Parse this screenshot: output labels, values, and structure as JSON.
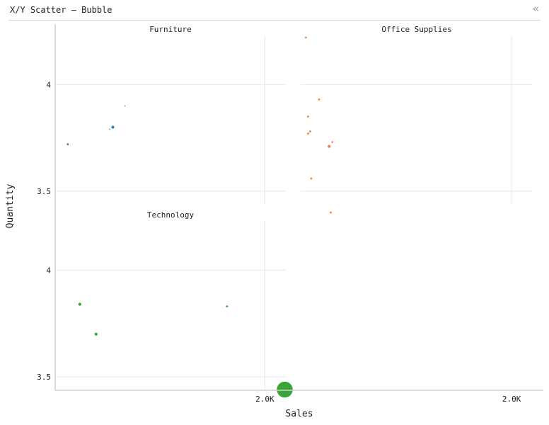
{
  "window": {
    "title": "X/Y Scatter – Bubble",
    "collapse_icon": "double-chevron-left-icon"
  },
  "chart_data": {
    "type": "scatter",
    "subtype": "bubble",
    "xlabel": "Sales",
    "ylabel": "Quantity",
    "x_ticks": [
      "2.0K"
    ],
    "x_tick_values": [
      2000
    ],
    "y_ticks": [
      "4",
      "3.5"
    ],
    "y_tick_values": [
      4,
      3.5
    ],
    "xlim": [
      0,
      2200
    ],
    "ylim": [
      3.44,
      4.23
    ],
    "grid": true,
    "legend": "none",
    "facets": [
      {
        "name": "Furniture",
        "color": "#1f77b4",
        "points": [
          {
            "x": 120,
            "y": 3.72,
            "size": 2
          },
          {
            "x": 520,
            "y": 3.79,
            "size": 1
          },
          {
            "x": 550,
            "y": 3.8,
            "size": 3
          },
          {
            "x": 665,
            "y": 3.9,
            "size": 1
          }
        ]
      },
      {
        "name": "Office Supplies",
        "color": "#e6823a",
        "points": [
          {
            "x": 50,
            "y": 4.22,
            "size": 2
          },
          {
            "x": 175,
            "y": 3.93,
            "size": 2
          },
          {
            "x": 70,
            "y": 3.85,
            "size": 2
          },
          {
            "x": 90,
            "y": 3.78,
            "size": 2
          },
          {
            "x": 70,
            "y": 3.77,
            "size": 2
          },
          {
            "x": 300,
            "y": 3.73,
            "size": 2
          },
          {
            "x": 270,
            "y": 3.71,
            "size": 3
          },
          {
            "x": 100,
            "y": 3.56,
            "size": 2
          },
          {
            "x": 285,
            "y": 3.4,
            "size": 2
          }
        ]
      },
      {
        "name": "Technology",
        "color": "#2ca02c",
        "points": [
          {
            "x": 235,
            "y": 3.84,
            "size": 3
          },
          {
            "x": 390,
            "y": 3.7,
            "size": 3
          },
          {
            "x": 1640,
            "y": 3.83,
            "size": 2
          },
          {
            "x": 2190,
            "y": 3.44,
            "size": 60
          }
        ]
      }
    ]
  }
}
